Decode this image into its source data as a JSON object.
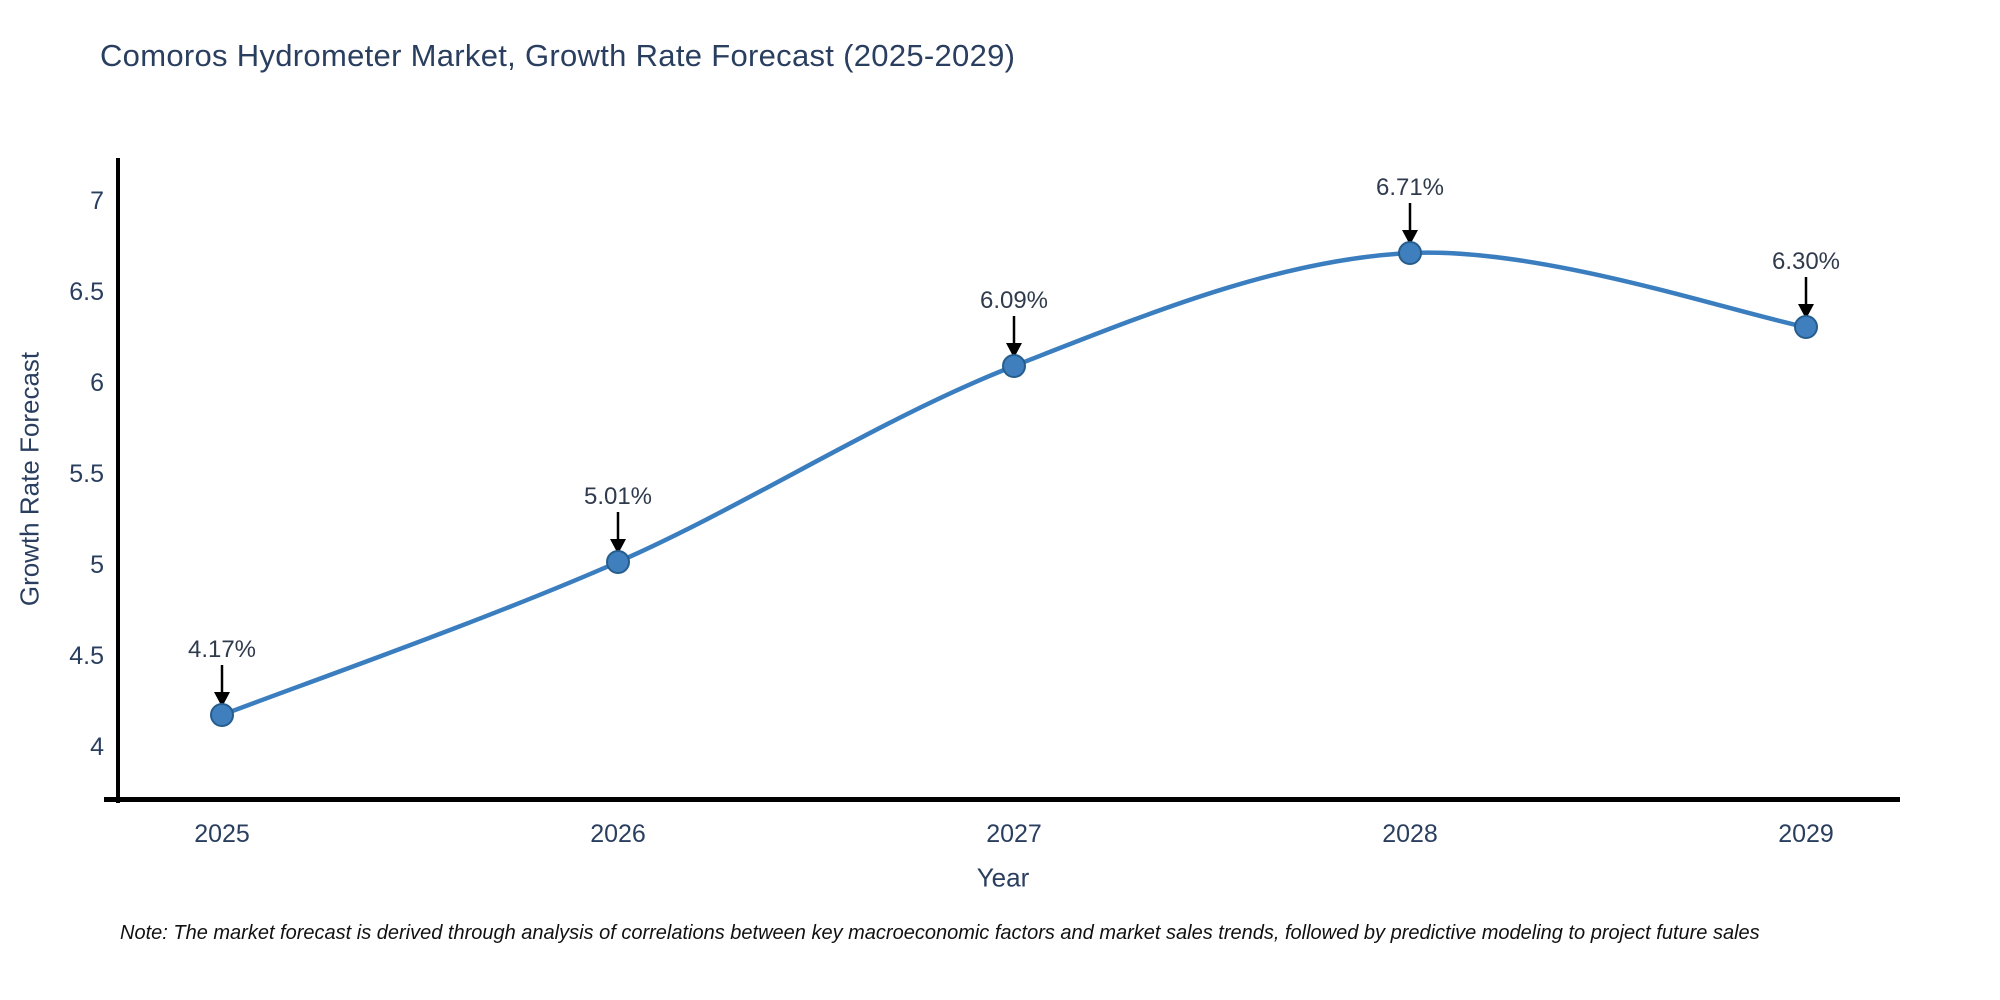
{
  "title": "Comoros Hydrometer Market, Growth Rate Forecast (2025-2029)",
  "note": "Note: The market forecast is derived through analysis of correlations between key macroeconomic factors and market sales trends, followed by predictive modeling to project future sales",
  "chart_data": {
    "type": "line",
    "title": "Comoros Hydrometer Market, Growth Rate Forecast (2025-2029)",
    "xlabel": "Year",
    "ylabel": "Growth Rate Forecast",
    "x": [
      2025,
      2026,
      2027,
      2028,
      2029
    ],
    "series": [
      {
        "name": "Growth Rate Forecast",
        "values": [
          4.17,
          5.01,
          6.09,
          6.71,
          6.3
        ]
      }
    ],
    "point_labels": [
      "4.17%",
      "5.01%",
      "6.09%",
      "6.71%",
      "6.30%"
    ],
    "yticks": [
      4,
      4.5,
      5,
      5.5,
      6,
      6.5,
      7
    ],
    "ylim": [
      3.7,
      7.23
    ],
    "grid": false,
    "legend": "none",
    "line_smoothing": "spline",
    "colors": {
      "line": "#3a7ebf",
      "marker_fill": "#3f7fbd",
      "marker_edge": "#265d8d",
      "axis": "#000000",
      "text": "#2a3f5f",
      "annotation_text": "#2f3b4c",
      "arrow": "#000000",
      "background": "#ffffff"
    }
  }
}
